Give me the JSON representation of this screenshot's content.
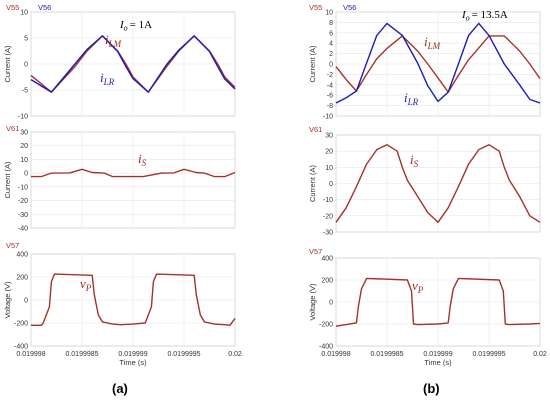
{
  "figure": {
    "panel_labels": [
      "(a)",
      "(b)"
    ]
  },
  "chart_data": [
    {
      "id": "a-top",
      "type": "line",
      "probe_labels": [
        "V55",
        "V56"
      ],
      "annotation_io": {
        "sym": "I",
        "sub": "o",
        "rhs": "= 1A"
      },
      "annotations": [
        {
          "sym": "i",
          "sub": "LM",
          "color": "#9b2b1a"
        },
        {
          "sym": "i",
          "sub": "LR",
          "color": "#1c1cba"
        }
      ],
      "ylabel": "Current (A)",
      "ylim": [
        -10,
        10
      ],
      "yticks": [
        "10",
        "5",
        "0",
        "-5",
        "-10"
      ],
      "xlim": [
        0.019998,
        0.02
      ],
      "x": [
        0.019998,
        0.0199982,
        0.01999843,
        0.01999855,
        0.0199987,
        0.01999885,
        0.01999893,
        0.019999,
        0.01999915,
        0.01999933,
        0.01999945,
        0.0199996,
        0.01999975,
        0.01999983,
        0.0199999,
        0.02
      ],
      "series": [
        {
          "name": "V55",
          "color": "#a3332a",
          "values": [
            -2.2,
            -5.4,
            -0.5,
            2.5,
            5.4,
            2.5,
            0.0,
            -2.5,
            -5.4,
            -0.5,
            2.5,
            5.4,
            2.5,
            0.0,
            -2.5,
            -4.5
          ]
        },
        {
          "name": "V56",
          "color": "#1c1cba",
          "values": [
            -3.0,
            -5.4,
            0.0,
            2.8,
            5.4,
            2.4,
            -0.5,
            -2.8,
            -5.4,
            -0.1,
            2.7,
            5.4,
            2.4,
            -0.5,
            -2.9,
            -4.8
          ]
        }
      ]
    },
    {
      "id": "a-mid",
      "type": "line",
      "probe_labels": [
        "V61"
      ],
      "annotations": [
        {
          "sym": "i",
          "sub": "S",
          "color": "#9b2b1a"
        }
      ],
      "ylabel": "Current (A)",
      "ylim": [
        -40,
        30
      ],
      "yticks": [
        "30",
        "20",
        "10",
        "0",
        "-10",
        "-20",
        "-30",
        "-40"
      ],
      "xlim": [
        0.019998,
        0.02
      ],
      "x": [
        0.019998,
        0.0199981,
        0.0199982,
        0.01999838,
        0.0199985,
        0.0199986,
        0.01999872,
        0.0199988,
        0.0199989,
        0.019999,
        0.0199991,
        0.01999928,
        0.0199994,
        0.0199995,
        0.01999962,
        0.0199997,
        0.0199998,
        0.0199999,
        0.02
      ],
      "series": [
        {
          "name": "V61",
          "color": "#a3332a",
          "values": [
            -2.5,
            -2.5,
            0.0,
            0.2,
            2.8,
            0.5,
            0.0,
            -2.5,
            -2.5,
            -2.5,
            -2.5,
            0.0,
            0.2,
            2.8,
            0.5,
            0.0,
            -2.5,
            -2.5,
            0.5
          ]
        }
      ]
    },
    {
      "id": "a-bot",
      "type": "line",
      "probe_labels": [
        "V57"
      ],
      "annotations": [
        {
          "sym": "v",
          "sub": "P",
          "color": "#9b2b1a"
        }
      ],
      "ylabel": "Voltage (V)",
      "ylim": [
        -400,
        400
      ],
      "yticks": [
        "400",
        "200",
        "0",
        "-200",
        "-400"
      ],
      "xlim": [
        0.019998,
        0.02
      ],
      "xticks": [
        "0.019998",
        "0.0199985",
        "0.019999",
        "0.0199995",
        "0.02"
      ],
      "xlabel": "Time (s)",
      "x": [
        0.019998,
        0.0199981,
        0.01999812,
        0.01999818,
        0.0199982,
        0.01999823,
        0.0199986,
        0.01999862,
        0.01999866,
        0.0199987,
        0.0199988,
        0.01999888,
        0.019999,
        0.01999912,
        0.01999918,
        0.0199992,
        0.01999923,
        0.0199996,
        0.01999962,
        0.01999966,
        0.0199997,
        0.0199998,
        0.0199999,
        0.01999995,
        0.02
      ],
      "series": [
        {
          "name": "V57",
          "color": "#a3332a",
          "values": [
            -220,
            -220,
            -200,
            -60,
            160,
            225,
            215,
            50,
            -130,
            -190,
            -210,
            -215,
            -210,
            -200,
            -60,
            160,
            225,
            215,
            50,
            -130,
            -190,
            -210,
            -215,
            -220,
            -160
          ]
        }
      ]
    },
    {
      "id": "b-top",
      "type": "line",
      "probe_labels": [
        "V55",
        "V56"
      ],
      "annotation_io": {
        "sym": "I",
        "sub": "o",
        "rhs": "= 13.5A"
      },
      "annotations": [
        {
          "sym": "i",
          "sub": "LM",
          "color": "#9b2b1a"
        },
        {
          "sym": "i",
          "sub": "LR",
          "color": "#1c1cba"
        }
      ],
      "ylabel": "Current (A)",
      "ylim": [
        -10,
        10
      ],
      "yticks": [
        "10",
        "8",
        "6",
        "4",
        "2",
        "0",
        "-2",
        "-4",
        "-6",
        "-8",
        "-10"
      ],
      "xlim": [
        0.019998,
        0.02
      ],
      "x": [
        0.019998,
        0.0199981,
        0.0199982,
        0.0199983,
        0.0199984,
        0.0199985,
        0.01999865,
        0.0199988,
        0.0199989,
        0.019999,
        0.0199991,
        0.0199992,
        0.0199993,
        0.0199994,
        0.0199995,
        0.01999965,
        0.0199998,
        0.0199999,
        0.02
      ],
      "series": [
        {
          "name": "V55",
          "color": "#a3332a",
          "values": [
            -0.5,
            -3.0,
            -5.2,
            -2.0,
            1.0,
            3.0,
            5.4,
            2.5,
            0.0,
            -2.7,
            -5.4,
            -2.2,
            0.8,
            3.1,
            5.4,
            5.4,
            2.5,
            0.0,
            -2.8
          ]
        },
        {
          "name": "V56",
          "color": "#1c1cba",
          "values": [
            -7.5,
            -6.5,
            -5.2,
            0.2,
            5.5,
            7.8,
            5.5,
            0.2,
            -4.2,
            -7.2,
            -5.4,
            0.0,
            5.5,
            7.8,
            5.5,
            0.0,
            -4.0,
            -6.8,
            -7.5
          ]
        }
      ]
    },
    {
      "id": "b-mid",
      "type": "line",
      "probe_labels": [
        "V61"
      ],
      "annotations": [
        {
          "sym": "i",
          "sub": "S",
          "color": "#9b2b1a"
        }
      ],
      "ylabel": "Current (A)",
      "ylim": [
        -30,
        30
      ],
      "yticks": [
        "30",
        "20",
        "10",
        "0",
        "-10",
        "-20",
        "-30"
      ],
      "xlim": [
        0.019998,
        0.02
      ],
      "x": [
        0.019998,
        0.0199981,
        0.0199982,
        0.0199983,
        0.0199984,
        0.0199985,
        0.0199986,
        0.01999865,
        0.0199987,
        0.0199988,
        0.0199989,
        0.019999,
        0.0199991,
        0.0199992,
        0.0199993,
        0.0199994,
        0.0199995,
        0.0199996,
        0.01999965,
        0.0199997,
        0.0199998,
        0.0199999,
        0.02
      ],
      "series": [
        {
          "name": "V61",
          "color": "#a3332a",
          "values": [
            -24,
            -15,
            -2,
            12,
            21,
            24,
            20,
            10,
            2,
            -8,
            -18,
            -24,
            -15,
            -2,
            12,
            21,
            24,
            20,
            10,
            2,
            -8,
            -20,
            -24
          ]
        }
      ]
    },
    {
      "id": "b-bot",
      "type": "line",
      "probe_labels": [
        "V57"
      ],
      "annotations": [
        {
          "sym": "v",
          "sub": "P",
          "color": "#9b2b1a"
        }
      ],
      "ylabel": "Voltage (V)",
      "ylim": [
        -400,
        400
      ],
      "yticks": [
        "400",
        "200",
        "0",
        "-200",
        "-400"
      ],
      "xlim": [
        0.019998,
        0.02
      ],
      "xticks": [
        "0.019998",
        "0.0199985",
        "0.019999",
        "0.0199995",
        "0.02"
      ],
      "xlabel": "Time (s)",
      "x": [
        0.019998,
        0.0199981,
        0.0199982,
        0.01999822,
        0.01999825,
        0.0199983,
        0.0199987,
        0.01999874,
        0.01999876,
        0.0199988,
        0.019999,
        0.0199991,
        0.01999912,
        0.01999915,
        0.0199992,
        0.0199996,
        0.01999964,
        0.01999966,
        0.0199997,
        0.0199999,
        0.02
      ],
      "series": [
        {
          "name": "V57",
          "color": "#a3332a",
          "values": [
            -220,
            -205,
            -190,
            -40,
            120,
            215,
            200,
            100,
            -200,
            -205,
            -200,
            -190,
            -40,
            120,
            215,
            200,
            100,
            -200,
            -205,
            -200,
            -195
          ]
        }
      ]
    }
  ]
}
